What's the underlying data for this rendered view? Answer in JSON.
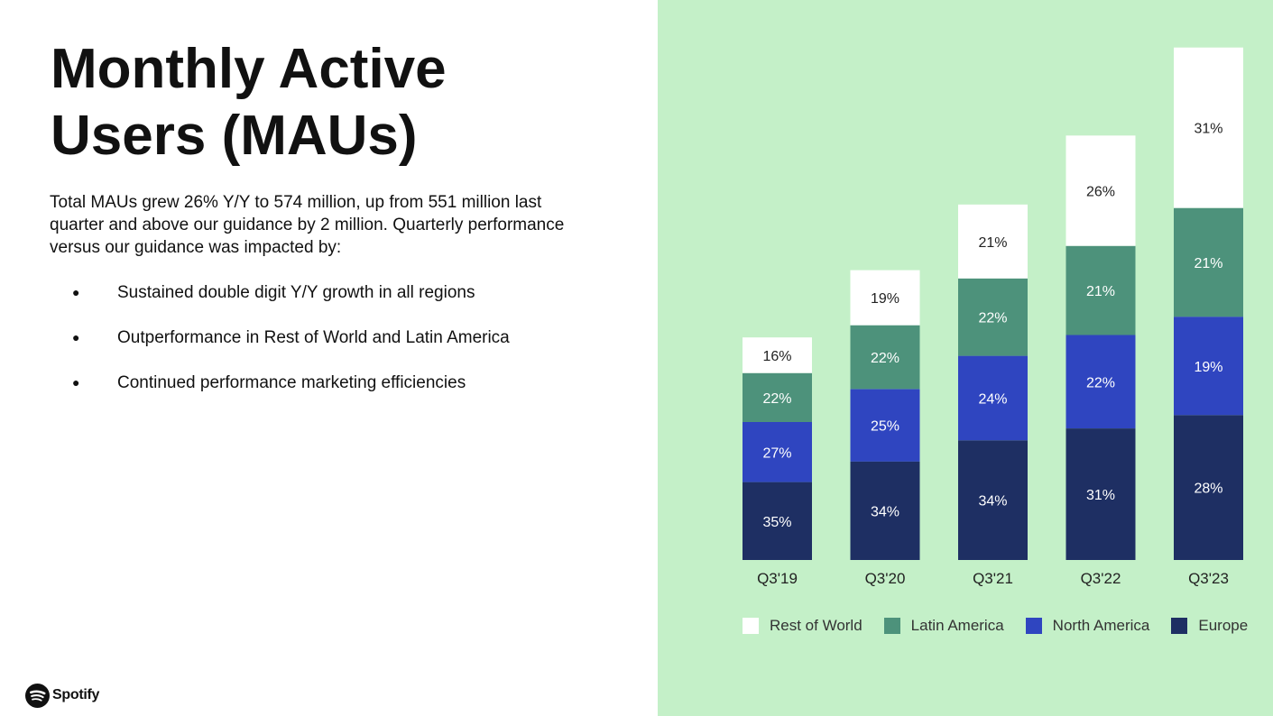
{
  "title": "Monthly Active\nUsers (MAUs)",
  "intro": "Total MAUs grew 26% Y/Y to 574 million, up from 551 million last quarter and above our guidance by 2 million. Quarterly performance versus our guidance was impacted by:",
  "bullets": [
    "Sustained double digit Y/Y growth in all regions",
    "Outperformance in Rest of World and Latin America",
    "Continued performance marketing efficiencies"
  ],
  "bullet_glyph": "●",
  "brand": {
    "name": "Spotify",
    "icon": "spotify-logo-icon"
  },
  "colors": {
    "panel_background": "#c4f0c8",
    "Rest of World": "#ffffff",
    "Latin America": "#4d927b",
    "North America": "#2f45c0",
    "Europe": "#1e2f63"
  },
  "chart_data": {
    "type": "bar",
    "stacked": true,
    "categories": [
      "Q3'19",
      "Q3'20",
      "Q3'21",
      "Q3'22",
      "Q3'23"
    ],
    "series": [
      {
        "name": "Europe",
        "values": [
          "35%",
          "34%",
          "34%",
          "31%",
          "28%"
        ]
      },
      {
        "name": "North America",
        "values": [
          "27%",
          "25%",
          "24%",
          "22%",
          "19%"
        ]
      },
      {
        "name": "Latin America",
        "values": [
          "22%",
          "22%",
          "22%",
          "21%",
          "21%"
        ]
      },
      {
        "name": "Rest of World",
        "values": [
          "16%",
          "19%",
          "21%",
          "26%",
          "31%"
        ]
      }
    ],
    "totals_relative_to_q3_23": [
      0.43,
      0.56,
      0.68,
      0.82,
      1.0
    ],
    "legend": [
      "Rest of World",
      "Latin America",
      "North America",
      "Europe"
    ],
    "legend_position": "bottom",
    "grid": false,
    "axes_visible": false
  }
}
